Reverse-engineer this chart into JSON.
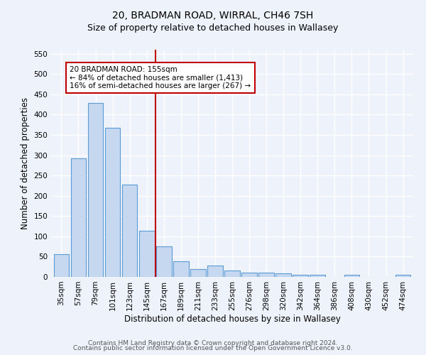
{
  "title1": "20, BRADMAN ROAD, WIRRAL, CH46 7SH",
  "title2": "Size of property relative to detached houses in Wallasey",
  "xlabel": "Distribution of detached houses by size in Wallasey",
  "ylabel": "Number of detached properties",
  "categories": [
    "35sqm",
    "57sqm",
    "79sqm",
    "101sqm",
    "123sqm",
    "145sqm",
    "167sqm",
    "189sqm",
    "211sqm",
    "233sqm",
    "255sqm",
    "276sqm",
    "298sqm",
    "320sqm",
    "342sqm",
    "364sqm",
    "386sqm",
    "408sqm",
    "430sqm",
    "452sqm",
    "474sqm"
  ],
  "values": [
    56,
    293,
    429,
    367,
    227,
    114,
    76,
    38,
    20,
    28,
    15,
    10,
    10,
    8,
    5,
    5,
    0,
    6,
    0,
    0,
    5
  ],
  "bar_color": "#c5d8f0",
  "bar_edge_color": "#5b9bd5",
  "vline_x": 5.5,
  "vline_color": "#c00000",
  "annotation_text": "20 BRADMAN ROAD: 155sqm\n← 84% of detached houses are smaller (1,413)\n16% of semi-detached houses are larger (267) →",
  "annotation_box_color": "white",
  "annotation_box_edge_color": "#c00000",
  "ylim": [
    0,
    560
  ],
  "yticks": [
    0,
    50,
    100,
    150,
    200,
    250,
    300,
    350,
    400,
    450,
    500,
    550
  ],
  "footer1": "Contains HM Land Registry data © Crown copyright and database right 2024.",
  "footer2": "Contains public sector information licensed under the Open Government Licence v3.0.",
  "bg_color": "#eef3fb",
  "plot_bg_color": "#eef3fb",
  "grid_color": "white",
  "title1_fontsize": 10,
  "title2_fontsize": 9,
  "tick_fontsize": 7.5,
  "label_fontsize": 8.5,
  "annotation_fontsize": 7.5,
  "footer_fontsize": 6.5
}
